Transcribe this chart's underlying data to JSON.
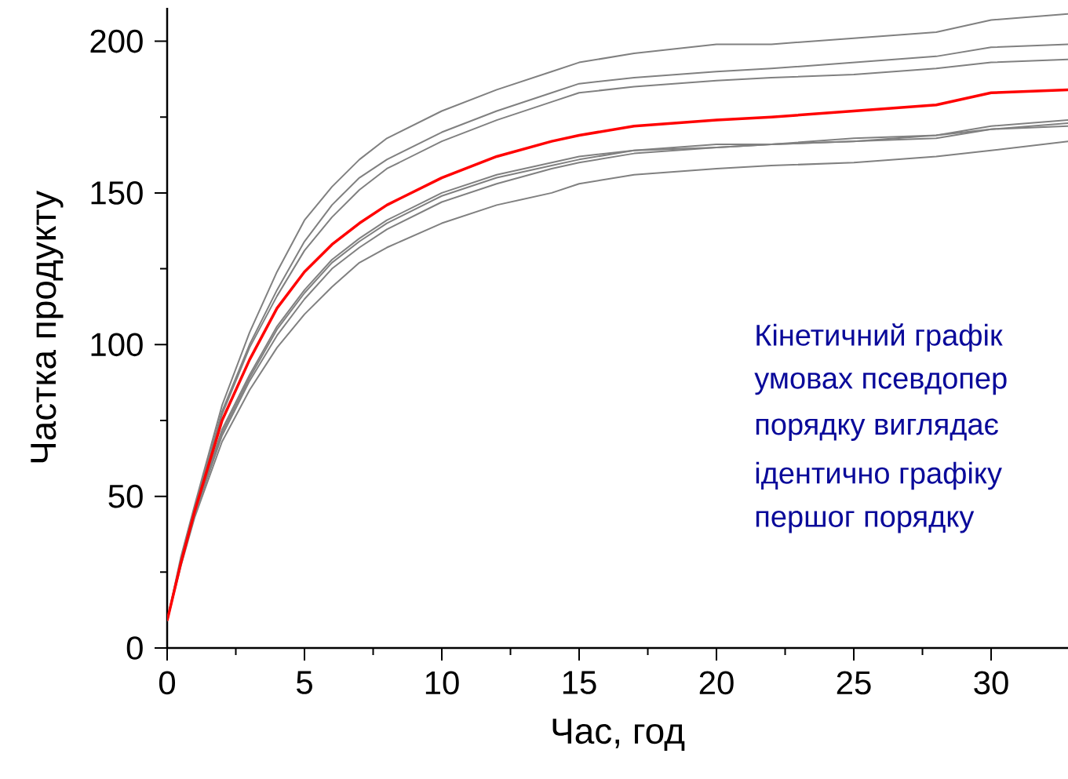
{
  "chart_data": {
    "type": "line",
    "xlabel": "Час, год",
    "ylabel": "Частка продукту",
    "x": [
      0,
      0.5,
      1,
      2,
      3,
      4,
      5,
      6,
      7,
      8,
      10,
      12,
      14,
      15,
      17,
      20,
      22,
      25,
      28,
      30,
      32.8
    ],
    "xlim": [
      0,
      32.8
    ],
    "ylim": [
      0,
      211
    ],
    "xticks": [
      0,
      5,
      10,
      15,
      20,
      25,
      30
    ],
    "yticks": [
      0,
      50,
      100,
      150,
      200
    ],
    "grid": false,
    "marker": "none",
    "line_style": "solid",
    "series": [
      {
        "color": "#808080",
        "values": [
          9,
          30,
          47,
          80,
          104,
          124,
          141,
          152,
          161,
          168,
          177,
          184,
          190,
          193,
          196,
          199,
          199,
          201,
          203,
          207,
          209
        ]
      },
      {
        "color": "#808080",
        "values": [
          9,
          29,
          46,
          78,
          100,
          118,
          134,
          146,
          155,
          161,
          170,
          177,
          183,
          186,
          188,
          190,
          191,
          193,
          195,
          198,
          199
        ]
      },
      {
        "color": "#808080",
        "values": [
          9,
          29,
          46,
          77,
          99,
          116,
          131,
          142,
          151,
          158,
          167,
          174,
          180,
          183,
          185,
          187,
          188,
          189,
          191,
          193,
          194
        ]
      },
      {
        "color": "#808080",
        "values": [
          9,
          28,
          45,
          72,
          90,
          106,
          118,
          128,
          135,
          141,
          150,
          156,
          160,
          162,
          164,
          166,
          166,
          168,
          169,
          172,
          174
        ]
      },
      {
        "color": "#808080",
        "values": [
          9,
          28,
          45,
          71,
          89,
          105,
          117,
          127,
          134,
          140,
          149,
          155,
          159,
          161,
          164,
          165,
          166,
          167,
          169,
          171,
          173
        ]
      },
      {
        "color": "#808080",
        "values": [
          9,
          28,
          44,
          70,
          88,
          103,
          115,
          125,
          132,
          138,
          147,
          153,
          158,
          160,
          163,
          165,
          166,
          167,
          168,
          171,
          172
        ]
      },
      {
        "color": "#808080",
        "values": [
          9,
          27,
          43,
          68,
          85,
          99,
          110,
          119,
          127,
          132,
          140,
          146,
          150,
          153,
          156,
          158,
          159,
          160,
          162,
          164,
          167
        ]
      },
      {
        "color": "#ff0000",
        "values": [
          9,
          28,
          45,
          75,
          95,
          112,
          124,
          133,
          140,
          146,
          155,
          162,
          167,
          169,
          172,
          174,
          175,
          177,
          179,
          183,
          184
        ]
      }
    ],
    "annotations": [
      "Кінетичний графік",
      "умовах псевдопер",
      "порядку виглядає",
      "ідентично графіку",
      "першог порядку"
    ]
  }
}
